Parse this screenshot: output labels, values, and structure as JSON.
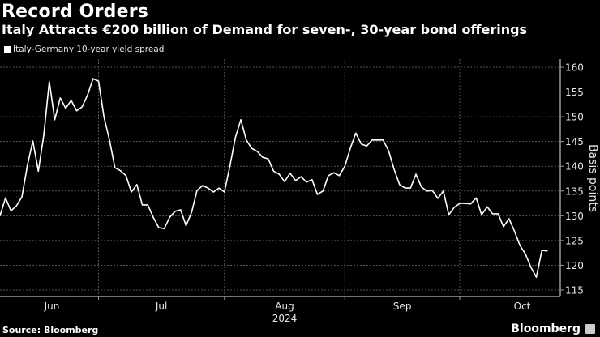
{
  "title": "Record Orders",
  "subtitle": "Italy Attracts €200 billion of Demand for seven-, 30-year bond offerings",
  "source": "Source: Bloomberg",
  "logo": "Bloomberg",
  "chart_data": {
    "type": "line",
    "ylabel": "Basis points",
    "ylim": [
      115,
      160
    ],
    "yticks": [
      115,
      120,
      125,
      130,
      135,
      140,
      145,
      150,
      155,
      160
    ],
    "month_labels": [
      "Jun",
      "Jul",
      "Aug",
      "Sep",
      "Oct"
    ],
    "year_label": "2024",
    "grid": true,
    "legend_position": "top-left",
    "colors": {
      "line": "#ffffff",
      "grid": "#555555",
      "axis": "#9a9a9a"
    },
    "series": [
      {
        "name": "Italy-Germany 10-year yield spread",
        "x": [
          "2024-06-04",
          "2024-06-05",
          "2024-06-06",
          "2024-06-07",
          "2024-06-10",
          "2024-06-11",
          "2024-06-12",
          "2024-06-13",
          "2024-06-14",
          "2024-06-17",
          "2024-06-18",
          "2024-06-19",
          "2024-06-20",
          "2024-06-21",
          "2024-06-24",
          "2024-06-25",
          "2024-06-26",
          "2024-06-27",
          "2024-06-28",
          "2024-07-01",
          "2024-07-02",
          "2024-07-03",
          "2024-07-04",
          "2024-07-05",
          "2024-07-08",
          "2024-07-09",
          "2024-07-10",
          "2024-07-11",
          "2024-07-12",
          "2024-07-15",
          "2024-07-16",
          "2024-07-17",
          "2024-07-18",
          "2024-07-19",
          "2024-07-22",
          "2024-07-23",
          "2024-07-24",
          "2024-07-25",
          "2024-07-26",
          "2024-07-29",
          "2024-07-30",
          "2024-07-31",
          "2024-08-01",
          "2024-08-02",
          "2024-08-05",
          "2024-08-06",
          "2024-08-07",
          "2024-08-08",
          "2024-08-09",
          "2024-08-12",
          "2024-08-13",
          "2024-08-14",
          "2024-08-15",
          "2024-08-16",
          "2024-08-19",
          "2024-08-20",
          "2024-08-21",
          "2024-08-22",
          "2024-08-23",
          "2024-08-26",
          "2024-08-27",
          "2024-08-28",
          "2024-08-29",
          "2024-08-30",
          "2024-09-02",
          "2024-09-03",
          "2024-09-04",
          "2024-09-05",
          "2024-09-06",
          "2024-09-09",
          "2024-09-10",
          "2024-09-11",
          "2024-09-12",
          "2024-09-13",
          "2024-09-16",
          "2024-09-17",
          "2024-09-18",
          "2024-09-19",
          "2024-09-20",
          "2024-09-23",
          "2024-09-24",
          "2024-09-25",
          "2024-09-26",
          "2024-09-27",
          "2024-09-30",
          "2024-10-01",
          "2024-10-02",
          "2024-10-03",
          "2024-10-04",
          "2024-10-07",
          "2024-10-08",
          "2024-10-09",
          "2024-10-10",
          "2024-10-11",
          "2024-10-14",
          "2024-10-15",
          "2024-10-16",
          "2024-10-17",
          "2024-10-18",
          "2024-10-21",
          "2024-10-22"
        ],
        "values": [
          130.0,
          133.6,
          131.0,
          132.0,
          133.8,
          140.2,
          145.1,
          139.0,
          146.3,
          157.1,
          149.4,
          153.8,
          151.7,
          153.3,
          151.2,
          152.0,
          154.4,
          157.7,
          157.2,
          149.9,
          145.3,
          139.7,
          139.1,
          138.1,
          134.8,
          136.3,
          132.2,
          132.2,
          129.7,
          127.6,
          127.4,
          129.7,
          130.9,
          131.2,
          128.0,
          130.7,
          135.1,
          136.1,
          135.6,
          134.8,
          135.6,
          134.8,
          140.0,
          145.8,
          149.4,
          145.3,
          143.6,
          143.0,
          141.8,
          141.5,
          139.0,
          138.4,
          136.9,
          138.6,
          137.1,
          137.9,
          136.8,
          137.3,
          134.3,
          135.0,
          138.1,
          138.7,
          138.1,
          140.0,
          143.6,
          146.7,
          144.5,
          144.1,
          145.3,
          145.3,
          145.3,
          143.1,
          139.4,
          136.3,
          135.6,
          135.6,
          138.4,
          135.8,
          135.0,
          135.1,
          133.5,
          135.0,
          130.2,
          131.7,
          132.5,
          132.5,
          132.4,
          133.6,
          130.2,
          131.8,
          130.4,
          130.4,
          127.8,
          129.4,
          126.9,
          124.0,
          122.3,
          119.6,
          117.6,
          123.0,
          122.9
        ]
      }
    ]
  }
}
